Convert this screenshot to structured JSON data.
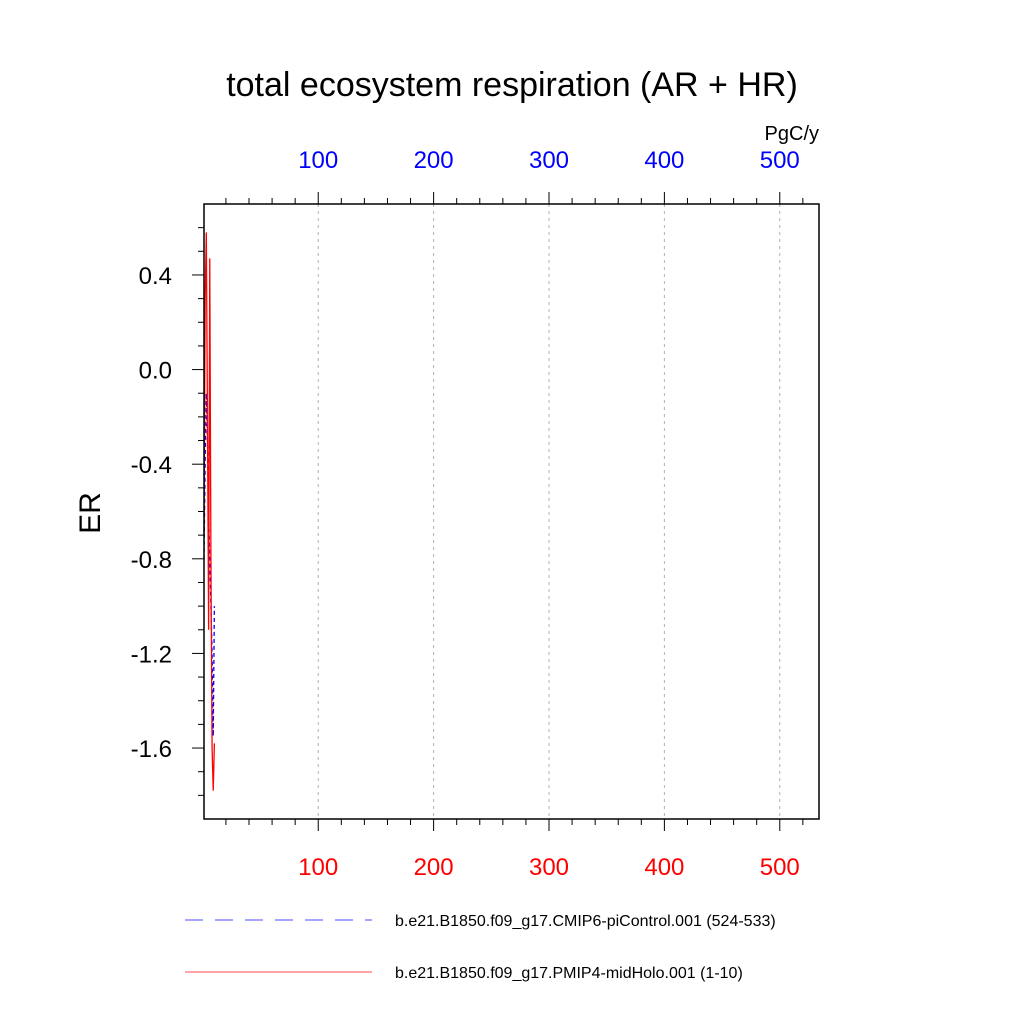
{
  "chart_data": {
    "type": "line",
    "title": "total ecosystem respiration (AR + HR)",
    "ylabel": "ER",
    "units": "PgC/y",
    "xlim": [
      1,
      534
    ],
    "ylim": [
      -1.9,
      0.7
    ],
    "x_ticks": [
      100,
      200,
      300,
      400,
      500
    ],
    "x_tick_labels": [
      "100",
      "200",
      "300",
      "400",
      "500"
    ],
    "y_ticks": [
      0.4,
      0.0,
      -0.4,
      -0.8,
      -1.2,
      -1.6
    ],
    "y_tick_labels": [
      "0.4",
      "0.0",
      "-0.4",
      "-0.8",
      "-1.2",
      "-1.6"
    ],
    "grid": "vertical dashed",
    "legend_position": "bottom",
    "series": [
      {
        "name": "b.e21.B1850.f09_g17.CMIP6-piControl.001 (524-533)",
        "color": "#0000ff",
        "dash": "dashed",
        "x": [
          1,
          2,
          3,
          4,
          5,
          6,
          7,
          8,
          9,
          10
        ],
        "y": [
          -0.8,
          -0.4,
          -0.1,
          -0.3,
          -0.6,
          -0.8,
          -1.0,
          -1.2,
          -1.55,
          -1.0
        ]
      },
      {
        "name": "b.e21.B1850.f09_g17.PMIP4-midHolo.001 (1-10)",
        "color": "#ff0000",
        "dash": "solid",
        "x": [
          1,
          2,
          3,
          4,
          5,
          6,
          7,
          8,
          9,
          10
        ],
        "y": [
          -0.7,
          0.3,
          0.58,
          -0.2,
          -1.1,
          0.47,
          -0.8,
          -1.6,
          -1.78,
          -1.58
        ]
      }
    ]
  }
}
